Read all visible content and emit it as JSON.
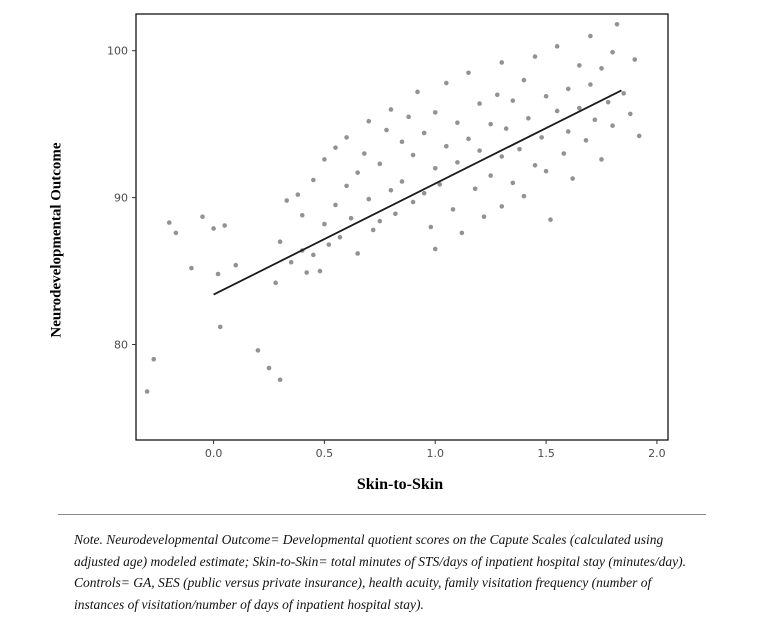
{
  "chart_data": {
    "type": "scatter",
    "title": "",
    "xlabel": "Skin-to-Skin",
    "ylabel": "Neurodevelopmental Outcome",
    "xlim": [
      -0.35,
      2.05
    ],
    "ylim": [
      73.5,
      102.5
    ],
    "xticks": [
      0.0,
      0.5,
      1.0,
      1.5,
      2.0
    ],
    "xtick_labels": [
      "0.0",
      "0.5",
      "1.0",
      "1.5",
      "2.0"
    ],
    "yticks": [
      80,
      90,
      100
    ],
    "ytick_labels": [
      "80",
      "90",
      "100"
    ],
    "grid": false,
    "legend": "none",
    "point_color": "#777777",
    "line_color": "#1a1a1a",
    "regression_line": {
      "x1": 0.0,
      "y1": 83.4,
      "x2": 1.84,
      "y2": 97.3
    },
    "points": [
      [
        -0.3,
        76.8
      ],
      [
        -0.27,
        79.0
      ],
      [
        -0.2,
        88.3
      ],
      [
        -0.17,
        87.6
      ],
      [
        -0.1,
        85.2
      ],
      [
        -0.05,
        88.7
      ],
      [
        0.0,
        87.9
      ],
      [
        0.02,
        84.8
      ],
      [
        0.03,
        81.2
      ],
      [
        0.05,
        88.1
      ],
      [
        0.1,
        85.4
      ],
      [
        0.2,
        79.6
      ],
      [
        0.25,
        78.4
      ],
      [
        0.28,
        84.2
      ],
      [
        0.3,
        77.6
      ],
      [
        0.3,
        87.0
      ],
      [
        0.33,
        89.8
      ],
      [
        0.35,
        85.6
      ],
      [
        0.38,
        90.2
      ],
      [
        0.4,
        86.4
      ],
      [
        0.4,
        88.8
      ],
      [
        0.42,
        84.9
      ],
      [
        0.45,
        91.2
      ],
      [
        0.45,
        86.1
      ],
      [
        0.48,
        85.0
      ],
      [
        0.5,
        88.2
      ],
      [
        0.5,
        92.6
      ],
      [
        0.52,
        86.8
      ],
      [
        0.55,
        89.5
      ],
      [
        0.55,
        93.4
      ],
      [
        0.57,
        87.3
      ],
      [
        0.6,
        90.8
      ],
      [
        0.6,
        94.1
      ],
      [
        0.62,
        88.6
      ],
      [
        0.65,
        91.7
      ],
      [
        0.65,
        86.2
      ],
      [
        0.68,
        93.0
      ],
      [
        0.7,
        89.9
      ],
      [
        0.7,
        95.2
      ],
      [
        0.72,
        87.8
      ],
      [
        0.75,
        92.3
      ],
      [
        0.75,
        88.4
      ],
      [
        0.78,
        94.6
      ],
      [
        0.8,
        90.5
      ],
      [
        0.8,
        96.0
      ],
      [
        0.82,
        88.9
      ],
      [
        0.85,
        93.8
      ],
      [
        0.85,
        91.1
      ],
      [
        0.88,
        95.5
      ],
      [
        0.9,
        89.7
      ],
      [
        0.9,
        92.9
      ],
      [
        0.92,
        97.2
      ],
      [
        0.95,
        90.3
      ],
      [
        0.95,
        94.4
      ],
      [
        0.98,
        88.0
      ],
      [
        1.0,
        92.0
      ],
      [
        1.0,
        95.8
      ],
      [
        1.0,
        86.5
      ],
      [
        1.02,
        90.9
      ],
      [
        1.05,
        93.5
      ],
      [
        1.05,
        97.8
      ],
      [
        1.08,
        89.2
      ],
      [
        1.1,
        92.4
      ],
      [
        1.1,
        95.1
      ],
      [
        1.12,
        87.6
      ],
      [
        1.15,
        94.0
      ],
      [
        1.15,
        98.5
      ],
      [
        1.18,
        90.6
      ],
      [
        1.2,
        93.2
      ],
      [
        1.2,
        96.4
      ],
      [
        1.22,
        88.7
      ],
      [
        1.25,
        95.0
      ],
      [
        1.25,
        91.5
      ],
      [
        1.28,
        97.0
      ],
      [
        1.3,
        92.8
      ],
      [
        1.3,
        89.4
      ],
      [
        1.3,
        99.2
      ],
      [
        1.32,
        94.7
      ],
      [
        1.35,
        91.0
      ],
      [
        1.35,
        96.6
      ],
      [
        1.38,
        93.3
      ],
      [
        1.4,
        98.0
      ],
      [
        1.4,
        90.1
      ],
      [
        1.42,
        95.4
      ],
      [
        1.45,
        92.2
      ],
      [
        1.45,
        99.6
      ],
      [
        1.48,
        94.1
      ],
      [
        1.5,
        96.9
      ],
      [
        1.5,
        91.8
      ],
      [
        1.52,
        88.5
      ],
      [
        1.55,
        95.9
      ],
      [
        1.55,
        100.3
      ],
      [
        1.58,
        93.0
      ],
      [
        1.6,
        97.4
      ],
      [
        1.6,
        94.5
      ],
      [
        1.62,
        91.3
      ],
      [
        1.65,
        96.1
      ],
      [
        1.65,
        99.0
      ],
      [
        1.68,
        93.9
      ],
      [
        1.7,
        97.7
      ],
      [
        1.7,
        101.0
      ],
      [
        1.72,
        95.3
      ],
      [
        1.75,
        98.8
      ],
      [
        1.75,
        92.6
      ],
      [
        1.78,
        96.5
      ],
      [
        1.8,
        99.9
      ],
      [
        1.8,
        94.9
      ],
      [
        1.82,
        101.8
      ],
      [
        1.85,
        97.1
      ],
      [
        1.88,
        95.7
      ],
      [
        1.9,
        99.4
      ],
      [
        1.92,
        94.2
      ]
    ]
  },
  "note": {
    "text": "Note. Neurodevelopmental Outcome= Developmental quotient scores on the Capute Scales (calculated using adjusted age) modeled estimate; Skin-to-Skin= total minutes of STS/days of inpatient hospital stay (minutes/day). Controls= GA, SES (public versus private insurance), health acuity, family visitation frequency (number of instances of visitation/number of days of inpatient hospital stay)."
  },
  "colors": {
    "panel_border": "#000000",
    "tick_label": "#4d4d4d",
    "divider": "#8a8a8a"
  }
}
